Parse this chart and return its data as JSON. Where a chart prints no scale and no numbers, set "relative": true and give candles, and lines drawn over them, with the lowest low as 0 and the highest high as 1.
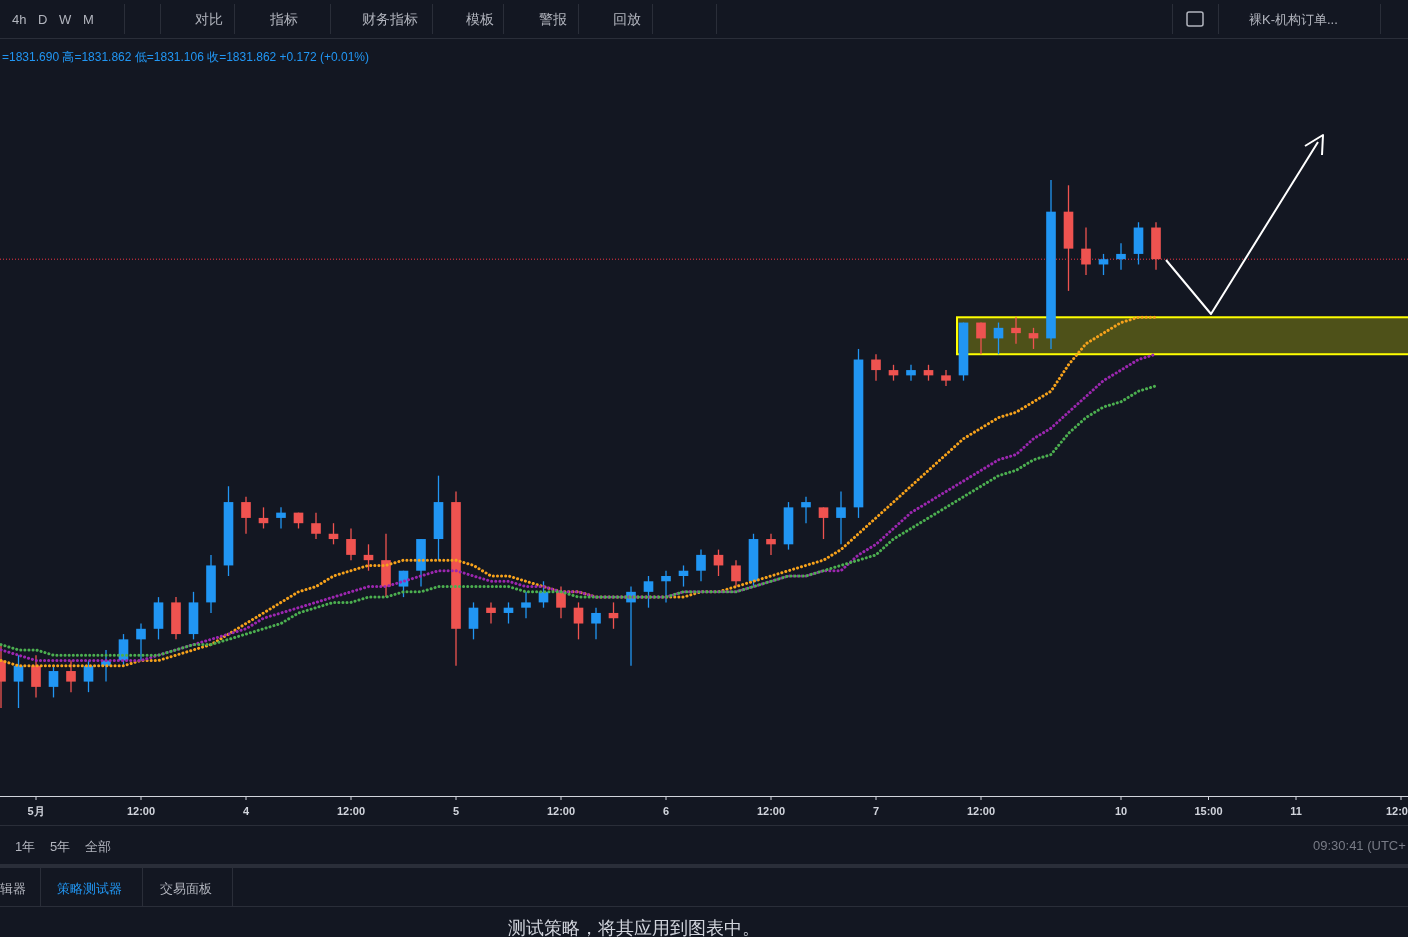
{
  "chart_data": {
    "type": "candlestick",
    "relative": true,
    "categories": [
      null,
      null,
      "5月",
      null,
      null,
      null,
      null,
      null,
      "12:00",
      null,
      null,
      null,
      null,
      null,
      "4",
      null,
      null,
      null,
      null,
      null,
      "12:00",
      null,
      null,
      null,
      null,
      null,
      "5",
      null,
      null,
      null,
      null,
      null,
      "12:00",
      null,
      null,
      null,
      null,
      null,
      "6",
      null,
      null,
      null,
      null,
      null,
      "12:00",
      null,
      null,
      null,
      null,
      null,
      "7",
      null,
      null,
      null,
      null,
      null,
      "12:00",
      null,
      null,
      null,
      null,
      null,
      null,
      null,
      "10",
      null,
      null,
      null,
      null,
      "15:00",
      null,
      null,
      null,
      null,
      "11",
      null,
      null,
      null,
      null,
      null,
      "12:0"
    ],
    "ohlc": [
      [
        0.09,
        0.12,
        0.0,
        0.05
      ],
      [
        0.05,
        0.1,
        0.0,
        0.08
      ],
      [
        0.08,
        0.1,
        0.02,
        0.04
      ],
      [
        0.04,
        0.08,
        0.02,
        0.07
      ],
      [
        0.07,
        0.09,
        0.03,
        0.05
      ],
      [
        0.05,
        0.09,
        0.03,
        0.08
      ],
      [
        0.08,
        0.11,
        0.05,
        0.09
      ],
      [
        0.09,
        0.14,
        0.08,
        0.13
      ],
      [
        0.13,
        0.16,
        0.09,
        0.15
      ],
      [
        0.15,
        0.21,
        0.13,
        0.2
      ],
      [
        0.2,
        0.21,
        0.13,
        0.14
      ],
      [
        0.14,
        0.22,
        0.13,
        0.2
      ],
      [
        0.2,
        0.29,
        0.18,
        0.27
      ],
      [
        0.27,
        0.42,
        0.25,
        0.39
      ],
      [
        0.39,
        0.4,
        0.33,
        0.36
      ],
      [
        0.36,
        0.38,
        0.34,
        0.35
      ],
      [
        0.36,
        0.38,
        0.34,
        0.37
      ],
      [
        0.37,
        0.37,
        0.34,
        0.35
      ],
      [
        0.35,
        0.37,
        0.32,
        0.33
      ],
      [
        0.33,
        0.35,
        0.31,
        0.32
      ],
      [
        0.32,
        0.34,
        0.28,
        0.29
      ],
      [
        0.29,
        0.31,
        0.26,
        0.28
      ],
      [
        0.28,
        0.33,
        0.21,
        0.23
      ],
      [
        0.23,
        0.26,
        0.21,
        0.26
      ],
      [
        0.26,
        0.32,
        0.23,
        0.32
      ],
      [
        0.32,
        0.44,
        0.28,
        0.39
      ],
      [
        0.39,
        0.41,
        0.08,
        0.15
      ],
      [
        0.15,
        0.2,
        0.13,
        0.19
      ],
      [
        0.19,
        0.2,
        0.16,
        0.18
      ],
      [
        0.18,
        0.2,
        0.16,
        0.19
      ],
      [
        0.19,
        0.22,
        0.17,
        0.2
      ],
      [
        0.2,
        0.24,
        0.19,
        0.22
      ],
      [
        0.22,
        0.23,
        0.17,
        0.19
      ],
      [
        0.19,
        0.2,
        0.13,
        0.16
      ],
      [
        0.16,
        0.19,
        0.13,
        0.18
      ],
      [
        0.18,
        0.2,
        0.15,
        0.17
      ],
      [
        0.2,
        0.23,
        0.08,
        0.22
      ],
      [
        0.22,
        0.25,
        0.19,
        0.24
      ],
      [
        0.24,
        0.26,
        0.2,
        0.25
      ],
      [
        0.25,
        0.27,
        0.23,
        0.26
      ],
      [
        0.26,
        0.3,
        0.24,
        0.29
      ],
      [
        0.29,
        0.3,
        0.25,
        0.27
      ],
      [
        0.27,
        0.28,
        0.23,
        0.24
      ],
      [
        0.24,
        0.33,
        0.23,
        0.32
      ],
      [
        0.32,
        0.33,
        0.29,
        0.31
      ],
      [
        0.31,
        0.39,
        0.3,
        0.38
      ],
      [
        0.38,
        0.4,
        0.35,
        0.39
      ],
      [
        0.38,
        0.38,
        0.32,
        0.36
      ],
      [
        0.36,
        0.41,
        0.31,
        0.38
      ],
      [
        0.38,
        0.68,
        0.36,
        0.66
      ],
      [
        0.66,
        0.67,
        0.62,
        0.64
      ],
      [
        0.64,
        0.65,
        0.62,
        0.63
      ],
      [
        0.63,
        0.65,
        0.62,
        0.64
      ],
      [
        0.64,
        0.65,
        0.62,
        0.63
      ],
      [
        0.63,
        0.64,
        0.61,
        0.62
      ],
      [
        0.63,
        0.73,
        0.62,
        0.73
      ],
      [
        0.73,
        0.73,
        0.67,
        0.7
      ],
      [
        0.7,
        0.73,
        0.67,
        0.72
      ],
      [
        0.72,
        0.74,
        0.69,
        0.71
      ],
      [
        0.71,
        0.72,
        0.68,
        0.7
      ],
      [
        0.7,
        1.0,
        0.68,
        0.94
      ],
      [
        0.94,
        0.99,
        0.79,
        0.87
      ],
      [
        0.87,
        0.91,
        0.82,
        0.84
      ],
      [
        0.84,
        0.86,
        0.82,
        0.85
      ],
      [
        0.85,
        0.88,
        0.83,
        0.86
      ],
      [
        0.86,
        0.92,
        0.84,
        0.91
      ],
      [
        0.91,
        0.92,
        0.83,
        0.85
      ],
      null,
      null,
      null,
      null,
      null,
      null,
      null,
      null,
      null,
      null,
      null,
      null,
      null,
      null
    ],
    "colors": [
      "#ef5350",
      "#2196f3",
      "#ef5350",
      "#2196f3",
      "#ef5350",
      "#2196f3",
      "#2196f3",
      "#2196f3",
      "#2196f3",
      "#2196f3",
      "#ef5350",
      "#2196f3",
      "#2196f3",
      "#2196f3",
      "#ef5350",
      "#ef5350",
      "#2196f3",
      "#ef5350",
      "#ef5350",
      "#ef5350",
      "#ef5350",
      "#ef5350",
      "#ef5350",
      "#2196f3",
      "#2196f3",
      "#2196f3",
      "#ef5350",
      "#2196f3",
      "#ef5350",
      "#2196f3",
      "#2196f3",
      "#2196f3",
      "#ef5350",
      "#ef5350",
      "#2196f3",
      "#ef5350",
      "#2196f3",
      "#2196f3",
      "#2196f3",
      "#2196f3",
      "#2196f3",
      "#ef5350",
      "#ef5350",
      "#2196f3",
      "#ef5350",
      "#2196f3",
      "#2196f3",
      "#ef5350",
      "#2196f3",
      "#2196f3",
      "#ef5350",
      "#ef5350",
      "#2196f3",
      "#ef5350",
      "#ef5350",
      "#2196f3",
      "#ef5350",
      "#2196f3",
      "#ef5350",
      "#ef5350",
      "#2196f3",
      "#ef5350",
      "#ef5350",
      "#2196f3",
      "#2196f3",
      "#2196f3",
      "#ef5350",
      null,
      null,
      null,
      null,
      null,
      null,
      null,
      null,
      null,
      null,
      null,
      null,
      null,
      null
    ],
    "series": [
      {
        "type": "line",
        "color": "#f7a21b",
        "line_style": "dotted",
        "values": [
          0.09,
          0.08,
          0.08,
          0.08,
          0.08,
          0.08,
          0.08,
          0.08,
          0.09,
          0.09,
          0.1,
          0.11,
          0.12,
          0.14,
          0.16,
          0.18,
          0.2,
          0.22,
          0.23,
          0.25,
          0.26,
          0.27,
          0.27,
          0.28,
          0.28,
          0.28,
          0.28,
          0.27,
          0.25,
          0.25,
          0.24,
          0.23,
          0.22,
          0.22,
          0.21,
          0.21,
          0.21,
          0.21,
          0.21,
          0.21,
          0.22,
          0.22,
          0.23,
          0.24,
          0.25,
          0.26,
          0.27,
          0.28,
          0.3,
          0.33,
          0.36,
          0.39,
          0.42,
          0.45,
          0.48,
          0.51,
          0.53,
          0.55,
          0.56,
          0.58,
          0.6,
          0.65,
          0.69,
          0.71,
          0.73,
          0.74,
          0.74,
          null,
          null,
          null,
          null,
          null,
          null,
          null,
          null,
          null,
          null,
          null,
          null,
          null,
          null
        ]
      },
      {
        "type": "line",
        "color": "#9c27b0",
        "line_style": "dotted",
        "values": [
          0.11,
          0.1,
          0.09,
          0.09,
          0.09,
          0.09,
          0.09,
          0.09,
          0.09,
          0.1,
          0.11,
          0.12,
          0.13,
          0.14,
          0.15,
          0.17,
          0.18,
          0.19,
          0.2,
          0.21,
          0.22,
          0.23,
          0.23,
          0.24,
          0.25,
          0.26,
          0.26,
          0.25,
          0.24,
          0.24,
          0.23,
          0.23,
          0.22,
          0.22,
          0.21,
          0.21,
          0.21,
          0.21,
          0.21,
          0.22,
          0.22,
          0.22,
          0.22,
          0.23,
          0.24,
          0.25,
          0.25,
          0.26,
          0.26,
          0.29,
          0.31,
          0.34,
          0.37,
          0.39,
          0.41,
          0.43,
          0.45,
          0.47,
          0.48,
          0.51,
          0.53,
          0.56,
          0.59,
          0.62,
          0.64,
          0.66,
          0.67,
          null,
          null,
          null,
          null,
          null,
          null,
          null,
          null,
          null,
          null,
          null,
          null,
          null,
          null
        ]
      },
      {
        "type": "line",
        "color": "#4caf50",
        "line_style": "dotted",
        "values": [
          0.12,
          0.11,
          0.11,
          0.1,
          0.1,
          0.1,
          0.1,
          0.1,
          0.1,
          0.1,
          0.11,
          0.12,
          0.12,
          0.13,
          0.14,
          0.15,
          0.16,
          0.18,
          0.19,
          0.2,
          0.2,
          0.21,
          0.21,
          0.22,
          0.22,
          0.23,
          0.23,
          0.23,
          0.23,
          0.23,
          0.22,
          0.22,
          0.22,
          0.21,
          0.21,
          0.21,
          0.21,
          0.21,
          0.21,
          0.22,
          0.22,
          0.22,
          0.22,
          0.23,
          0.24,
          0.25,
          0.25,
          0.26,
          0.27,
          0.28,
          0.29,
          0.32,
          0.34,
          0.36,
          0.38,
          0.4,
          0.42,
          0.44,
          0.45,
          0.47,
          0.48,
          0.52,
          0.55,
          0.57,
          0.58,
          0.6,
          0.61,
          null,
          null,
          null,
          null,
          null,
          null,
          null,
          null,
          null,
          null,
          null,
          null,
          null,
          null
        ]
      }
    ],
    "ref_lines": [
      {
        "axis": "y",
        "value": 0.85,
        "color": "#f23645",
        "line_style": "dotted"
      }
    ],
    "bands": [
      {
        "axis": "y",
        "from": 0.67,
        "to": 0.74,
        "color": "#ffff00"
      }
    ],
    "annotations": [
      "=1831.690 高=1831.862 低=1831.106 收=1831.862 +0.172 (+0.01%)",
      "4h",
      "D",
      "W",
      "M",
      "对比",
      "指标",
      "财务指标",
      "模板",
      "警报",
      "回放",
      "裸K-机构订单...",
      "1年",
      "5年",
      "全部",
      "09:30:41 (UTC+",
      "辑器",
      "策略测试器",
      "交易面板",
      "测试策略，将其应用到图表中。"
    ]
  }
}
